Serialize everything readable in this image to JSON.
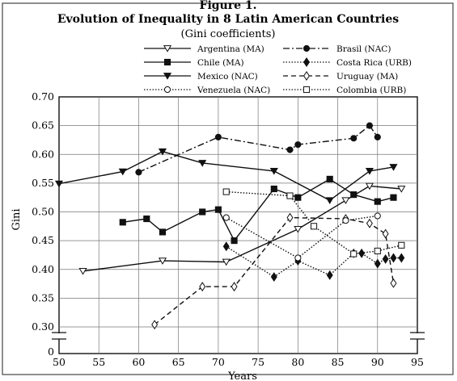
{
  "chart_data": {
    "type": "line",
    "title": "Figure 1.",
    "subtitle": "Evolution of Inequality in 8 Latin American Countries",
    "subtitle2": "(Gini coefficients)",
    "xlabel": "Years",
    "ylabel": "Gini",
    "xlim": [
      50,
      95
    ],
    "ylim": [
      0.25,
      0.7
    ],
    "xticks": [
      50,
      55,
      60,
      65,
      70,
      75,
      80,
      85,
      90,
      95
    ],
    "yticks": [
      0.3,
      0.35,
      0.4,
      0.45,
      0.5,
      0.55,
      0.6,
      0.65,
      0.7
    ],
    "ytick_labels": [
      "0.30",
      "0.35",
      "0.40",
      "0.45",
      "0.50",
      "0.55",
      "0.60",
      "0.65",
      "0.70"
    ],
    "ytick_zero_label": "0",
    "grid": true,
    "legend_position": "top",
    "series": [
      {
        "name": "Argentina (MA)",
        "marker": "triangle-down-open",
        "dash": "solid",
        "x": [
          53,
          63,
          71,
          80,
          86,
          89,
          93
        ],
        "y": [
          0.397,
          0.415,
          0.413,
          0.47,
          0.52,
          0.545,
          0.54
        ]
      },
      {
        "name": "Brasil (NAC)",
        "marker": "circle-filled",
        "dash": "dashdot",
        "x": [
          60,
          70,
          79,
          80,
          87,
          89,
          90
        ],
        "y": [
          0.569,
          0.63,
          0.608,
          0.617,
          0.628,
          0.65,
          0.63
        ]
      },
      {
        "name": "Chile (MA)",
        "marker": "square-filled",
        "dash": "solid",
        "x": [
          58,
          61,
          63,
          68,
          70,
          72,
          77,
          80,
          84,
          87,
          90,
          92
        ],
        "y": [
          0.482,
          0.488,
          0.465,
          0.5,
          0.504,
          0.45,
          0.54,
          0.525,
          0.557,
          0.53,
          0.518,
          0.525
        ]
      },
      {
        "name": "Costa Rica (URB)",
        "marker": "diamond-filled",
        "dash": "dotted",
        "x": [
          71,
          77,
          80,
          84,
          87,
          88,
          90,
          91,
          92,
          93
        ],
        "y": [
          0.44,
          0.387,
          0.415,
          0.39,
          0.428,
          0.428,
          0.41,
          0.418,
          0.42,
          0.42
        ]
      },
      {
        "name": "Mexico (NAC)",
        "marker": "triangle-down-filled",
        "dash": "solid",
        "x": [
          50,
          58,
          63,
          68,
          77,
          84,
          89,
          92
        ],
        "y": [
          0.549,
          0.57,
          0.605,
          0.585,
          0.571,
          0.52,
          0.571,
          0.578
        ]
      },
      {
        "name": "Uruguay (MA)",
        "marker": "diamond-open",
        "dash": "dashed",
        "x": [
          62,
          68,
          72,
          79,
          86,
          89,
          91,
          92
        ],
        "y": [
          0.304,
          0.37,
          0.37,
          0.49,
          0.488,
          0.48,
          0.462,
          0.376
        ]
      },
      {
        "name": "Venezuela (NAC)",
        "marker": "circle-open",
        "dash": "dotted",
        "x": [
          71,
          80,
          86,
          90
        ],
        "y": [
          0.49,
          0.42,
          0.485,
          0.493
        ]
      },
      {
        "name": "Colombia (URB)",
        "marker": "square-open",
        "dash": "dotted",
        "x": [
          71,
          79,
          82,
          87,
          90,
          93
        ],
        "y": [
          0.535,
          0.528,
          0.475,
          0.427,
          0.432,
          0.442
        ]
      }
    ]
  }
}
